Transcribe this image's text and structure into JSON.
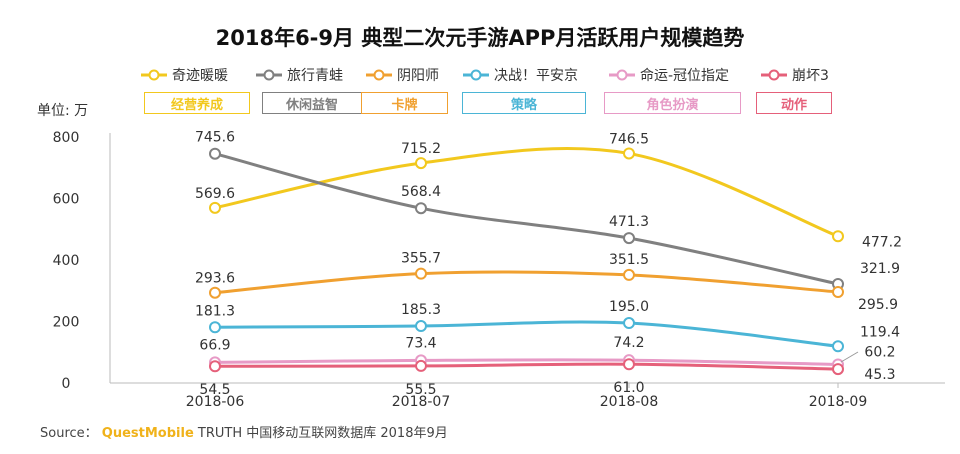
{
  "chart_data": {
    "type": "line",
    "title": "2018年6-9月 典型二次元手游APP月活跃用户规模趋势",
    "unit_label": "单位: 万",
    "categories": [
      "2018-06",
      "2018-07",
      "2018-08",
      "2018-09"
    ],
    "ylim": [
      0,
      800
    ],
    "yticks": [
      0,
      200,
      400,
      600,
      800
    ],
    "grid": false,
    "legend_position": "top",
    "series": [
      {
        "name": "奇迹暖暖",
        "genre": "经营养成",
        "color": "#f2c81e",
        "values": [
          569.6,
          715.2,
          746.5,
          477.2
        ],
        "labels": [
          "569.6",
          "715.2",
          "746.5",
          "477.2"
        ]
      },
      {
        "name": "旅行青蛙",
        "genre": "休闲益智",
        "color": "#808080",
        "values": [
          745.6,
          568.4,
          471.3,
          321.9
        ],
        "labels": [
          "745.6",
          "568.4",
          "471.3",
          "321.9"
        ]
      },
      {
        "name": "阴阳师",
        "genre": "卡牌",
        "color": "#f0a030",
        "values": [
          293.6,
          355.7,
          351.5,
          295.9
        ],
        "labels": [
          "293.6",
          "355.7",
          "351.5",
          "295.9"
        ]
      },
      {
        "name": "决战！平安京",
        "genre": "策略",
        "color": "#4bb5d6",
        "values": [
          181.3,
          185.3,
          195.0,
          119.4
        ],
        "labels": [
          "181.3",
          "185.3",
          "195.0",
          "119.4"
        ]
      },
      {
        "name": "命运-冠位指定",
        "genre": "角色扮演",
        "color": "#e79ac6",
        "values": [
          66.9,
          73.4,
          74.2,
          60.2
        ],
        "labels": [
          "66.9",
          "73.4",
          "74.2",
          "60.2"
        ]
      },
      {
        "name": "崩坏3",
        "genre": "动作",
        "color": "#e5607a",
        "values": [
          54.5,
          55.5,
          61.0,
          45.3
        ],
        "labels": [
          "54.5",
          "55.5",
          "61.0",
          "45.3"
        ]
      }
    ]
  },
  "source": {
    "prefix": "Source：",
    "brand": "QuestMobile",
    "rest": "TRUTH 中国移动互联网数据库 2018年9月"
  }
}
